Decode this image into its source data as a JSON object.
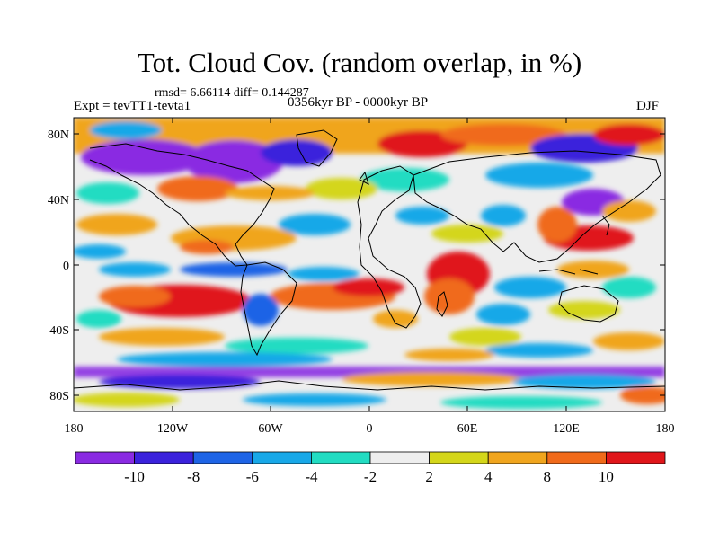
{
  "title": "Tot. Cloud Cov. (random overlap, in %)",
  "stats": "rmsd= 6.66114 diff= 0.144287",
  "experiment": "Expt = tevTT1-tevta1",
  "period": "0356kyr BP - 0000kyr BP",
  "season": "DJF",
  "lat_labels": [
    "80N",
    "40N",
    "0",
    "40S",
    "80S"
  ],
  "lon_labels": [
    "180",
    "120W",
    "60W",
    "0",
    "60E",
    "120E",
    "180"
  ],
  "colorbar": {
    "labels": [
      "-10",
      "-8",
      "-6",
      "-4",
      "-2",
      "2",
      "4",
      "8",
      "10"
    ],
    "colors": [
      "#8a2be2",
      "#3b22dc",
      "#1e64e6",
      "#18a8e8",
      "#22dcc2",
      "#eeeeee",
      "#d4d61a",
      "#f0a51e",
      "#f06a1a",
      "#e0161a"
    ]
  },
  "field": {
    "description_levels": [
      -10,
      -8,
      -6,
      -4,
      -2,
      2,
      4,
      8,
      10
    ]
  }
}
